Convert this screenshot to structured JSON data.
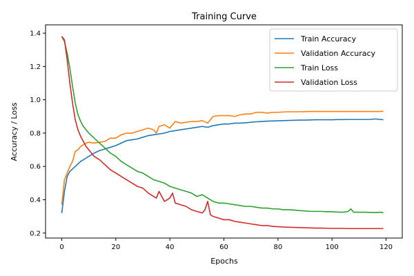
{
  "chart_data": {
    "type": "line",
    "title": "Training Curve",
    "xlabel": "Epochs",
    "ylabel": "Accuracy / Loss",
    "xlim": [
      -6,
      126
    ],
    "ylim": [
      0.17,
      1.45
    ],
    "xticks": [
      0,
      20,
      40,
      60,
      80,
      100,
      120
    ],
    "yticks": [
      0.2,
      0.4,
      0.6,
      0.8,
      1.0,
      1.2,
      1.4
    ],
    "legend_position": "top-right",
    "grid": false,
    "series": [
      {
        "name": "Train Accuracy",
        "color": "#1f77b4",
        "x": [
          0,
          1,
          2,
          3,
          4,
          5,
          6,
          7,
          8,
          9,
          10,
          12,
          14,
          16,
          18,
          20,
          22,
          24,
          26,
          28,
          30,
          32,
          34,
          36,
          38,
          40,
          42,
          44,
          46,
          48,
          50,
          52,
          54,
          56,
          58,
          60,
          62,
          64,
          66,
          68,
          70,
          72,
          74,
          76,
          78,
          80,
          82,
          84,
          86,
          88,
          90,
          92,
          94,
          96,
          98,
          100,
          102,
          104,
          106,
          108,
          110,
          112,
          114,
          116,
          118,
          119
        ],
        "y": [
          0.32,
          0.45,
          0.54,
          0.57,
          0.585,
          0.6,
          0.615,
          0.63,
          0.64,
          0.65,
          0.66,
          0.68,
          0.695,
          0.705,
          0.715,
          0.725,
          0.74,
          0.755,
          0.76,
          0.765,
          0.775,
          0.785,
          0.79,
          0.795,
          0.8,
          0.81,
          0.815,
          0.82,
          0.825,
          0.83,
          0.835,
          0.84,
          0.835,
          0.845,
          0.85,
          0.855,
          0.855,
          0.86,
          0.86,
          0.862,
          0.865,
          0.868,
          0.87,
          0.872,
          0.873,
          0.874,
          0.875,
          0.876,
          0.877,
          0.878,
          0.878,
          0.879,
          0.88,
          0.88,
          0.88,
          0.88,
          0.881,
          0.881,
          0.882,
          0.882,
          0.882,
          0.882,
          0.882,
          0.885,
          0.882,
          0.88
        ]
      },
      {
        "name": "Validation Accuracy",
        "color": "#ff7f0e",
        "x": [
          0,
          1,
          2,
          3,
          4,
          5,
          6,
          7,
          8,
          9,
          10,
          12,
          14,
          16,
          18,
          20,
          22,
          24,
          26,
          28,
          30,
          32,
          34,
          35,
          36,
          38,
          40,
          42,
          44,
          46,
          48,
          50,
          52,
          54,
          56,
          58,
          60,
          62,
          64,
          66,
          68,
          70,
          72,
          74,
          76,
          78,
          80,
          82,
          84,
          86,
          88,
          90,
          92,
          94,
          96,
          98,
          100,
          102,
          104,
          106,
          108,
          110,
          112,
          114,
          116,
          118,
          119
        ],
        "y": [
          0.37,
          0.52,
          0.56,
          0.6,
          0.63,
          0.69,
          0.7,
          0.72,
          0.73,
          0.74,
          0.745,
          0.74,
          0.745,
          0.75,
          0.77,
          0.77,
          0.79,
          0.8,
          0.8,
          0.81,
          0.82,
          0.83,
          0.82,
          0.8,
          0.84,
          0.85,
          0.83,
          0.87,
          0.86,
          0.865,
          0.87,
          0.87,
          0.875,
          0.86,
          0.9,
          0.905,
          0.905,
          0.905,
          0.9,
          0.91,
          0.915,
          0.915,
          0.925,
          0.925,
          0.92,
          0.925,
          0.925,
          0.927,
          0.928,
          0.928,
          0.928,
          0.929,
          0.93,
          0.93,
          0.93,
          0.93,
          0.93,
          0.93,
          0.93,
          0.93,
          0.93,
          0.93,
          0.93,
          0.93,
          0.93,
          0.93,
          0.932
        ]
      },
      {
        "name": "Train Loss",
        "color": "#2ca02c",
        "x": [
          0,
          1,
          2,
          3,
          4,
          5,
          6,
          7,
          8,
          9,
          10,
          12,
          14,
          16,
          18,
          20,
          22,
          24,
          26,
          28,
          30,
          32,
          34,
          36,
          38,
          40,
          42,
          44,
          46,
          48,
          50,
          52,
          53,
          54,
          56,
          58,
          60,
          62,
          64,
          66,
          68,
          70,
          72,
          74,
          76,
          78,
          80,
          82,
          84,
          86,
          88,
          90,
          92,
          94,
          96,
          98,
          100,
          102,
          104,
          106,
          107,
          108,
          110,
          112,
          114,
          116,
          118,
          119
        ],
        "y": [
          1.38,
          1.35,
          1.28,
          1.19,
          1.08,
          0.98,
          0.91,
          0.87,
          0.84,
          0.82,
          0.8,
          0.77,
          0.74,
          0.71,
          0.68,
          0.66,
          0.63,
          0.61,
          0.59,
          0.57,
          0.56,
          0.54,
          0.52,
          0.51,
          0.5,
          0.48,
          0.47,
          0.46,
          0.45,
          0.44,
          0.42,
          0.43,
          0.42,
          0.41,
          0.39,
          0.38,
          0.38,
          0.375,
          0.37,
          0.365,
          0.36,
          0.36,
          0.355,
          0.35,
          0.35,
          0.345,
          0.345,
          0.34,
          0.34,
          0.338,
          0.335,
          0.333,
          0.33,
          0.33,
          0.33,
          0.328,
          0.328,
          0.326,
          0.325,
          0.33,
          0.345,
          0.325,
          0.325,
          0.325,
          0.324,
          0.323,
          0.325,
          0.322
        ]
      },
      {
        "name": "Validation Loss",
        "color": "#d62728",
        "x": [
          0,
          1,
          2,
          3,
          4,
          5,
          6,
          7,
          8,
          9,
          10,
          12,
          14,
          16,
          18,
          20,
          22,
          24,
          26,
          28,
          30,
          32,
          34,
          35,
          36,
          38,
          40,
          41,
          42,
          44,
          46,
          48,
          50,
          52,
          53,
          54,
          55,
          56,
          58,
          60,
          62,
          64,
          66,
          68,
          70,
          72,
          74,
          76,
          78,
          80,
          82,
          84,
          86,
          88,
          90,
          92,
          94,
          96,
          98,
          100,
          102,
          104,
          106,
          108,
          110,
          112,
          114,
          116,
          118,
          119
        ],
        "y": [
          1.38,
          1.36,
          1.24,
          1.1,
          0.98,
          0.88,
          0.82,
          0.78,
          0.75,
          0.72,
          0.7,
          0.66,
          0.64,
          0.61,
          0.58,
          0.56,
          0.54,
          0.52,
          0.5,
          0.48,
          0.47,
          0.44,
          0.42,
          0.41,
          0.45,
          0.39,
          0.41,
          0.44,
          0.38,
          0.37,
          0.36,
          0.34,
          0.33,
          0.32,
          0.34,
          0.39,
          0.31,
          0.3,
          0.29,
          0.28,
          0.28,
          0.27,
          0.265,
          0.26,
          0.255,
          0.25,
          0.245,
          0.245,
          0.24,
          0.238,
          0.236,
          0.235,
          0.234,
          0.233,
          0.232,
          0.231,
          0.23,
          0.23,
          0.229,
          0.228,
          0.228,
          0.228,
          0.227,
          0.227,
          0.227,
          0.227,
          0.227,
          0.227,
          0.227,
          0.227
        ]
      }
    ]
  }
}
